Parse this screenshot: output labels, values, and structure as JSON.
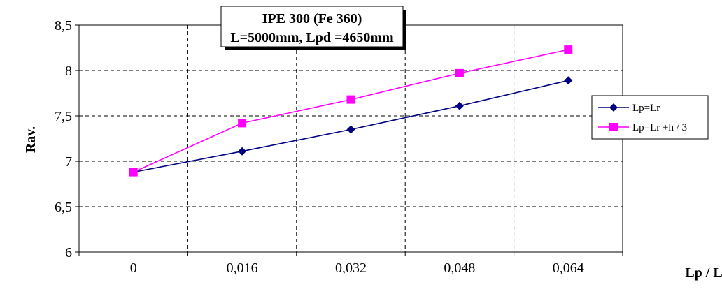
{
  "chart_data": {
    "type": "line",
    "title_lines": [
      "IPE 300 (Fe 360)",
      "L=5000mm, Lpd =4650mm"
    ],
    "xlabel": "Lp / L",
    "ylabel": "Rav.",
    "categories": [
      "0",
      "0,016",
      "0,032",
      "0,048",
      "0,064"
    ],
    "ylim": [
      6,
      8.5
    ],
    "yticks": [
      "6",
      "6,5",
      "7",
      "7,5",
      "8",
      "8,5"
    ],
    "grid": true,
    "legend_position": "right",
    "series": [
      {
        "name": "Lp=Lr",
        "color": "#000080",
        "marker": "diamond",
        "values": [
          6.88,
          7.11,
          7.35,
          7.61,
          7.89
        ]
      },
      {
        "name": "Lp=Lr +h / 3",
        "color": "#ff00ff",
        "marker": "square",
        "values": [
          6.88,
          7.42,
          7.68,
          7.97,
          8.23
        ]
      }
    ]
  }
}
